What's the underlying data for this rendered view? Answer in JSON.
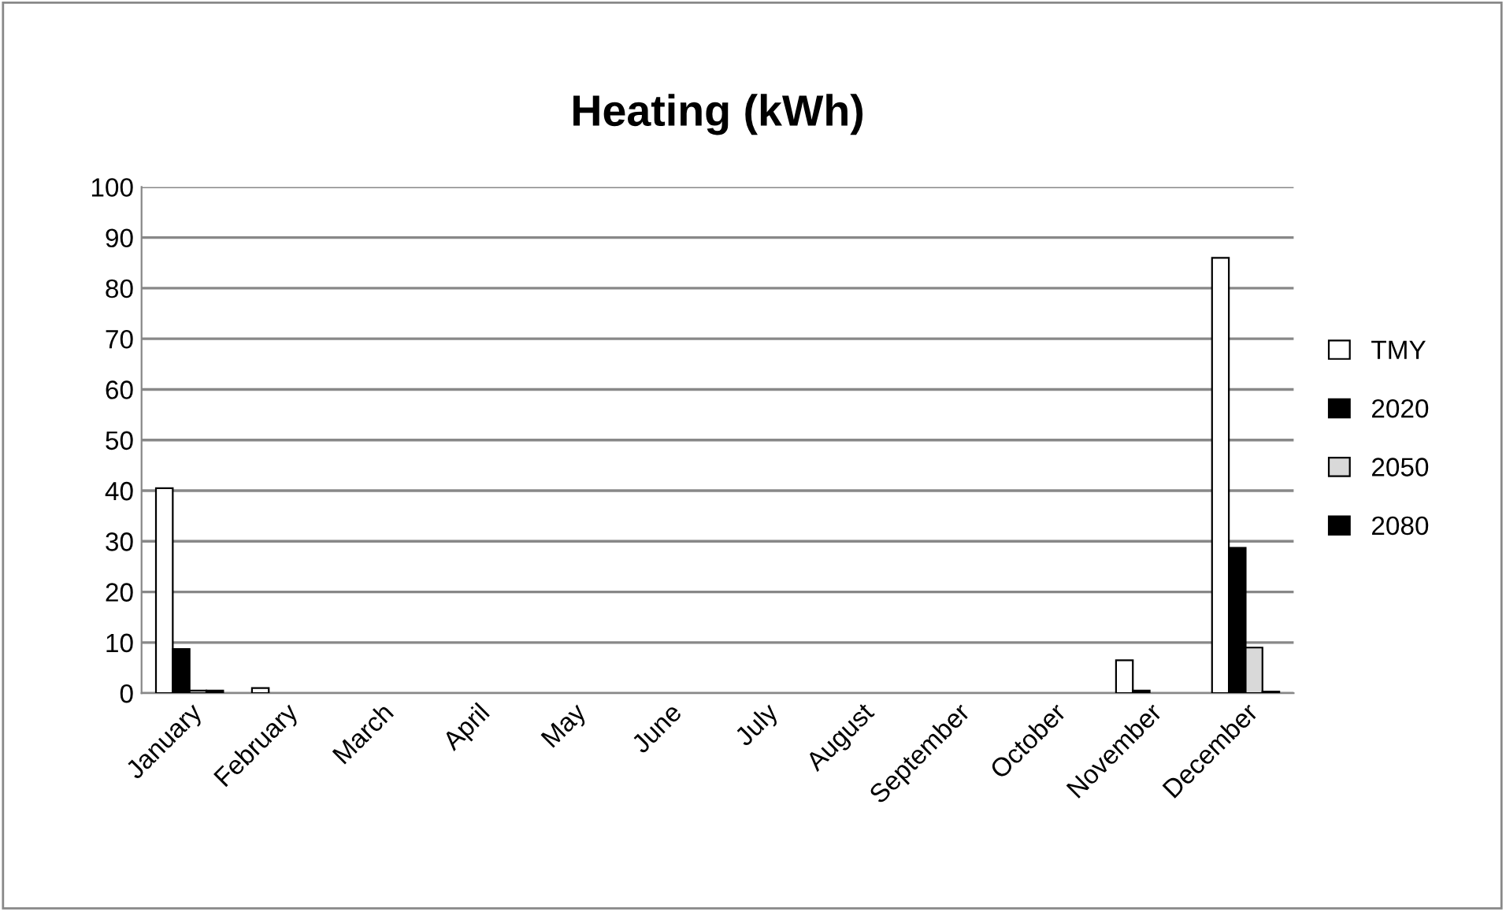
{
  "chart_data": {
    "type": "bar",
    "title": "Heating (kWh)",
    "categories": [
      "January",
      "February",
      "March",
      "April",
      "May",
      "June",
      "July",
      "August",
      "September",
      "October",
      "November",
      "December"
    ],
    "series": [
      {
        "name": "TMY",
        "color": "#ffffff",
        "values": [
          40.5,
          1,
          null,
          null,
          null,
          null,
          null,
          null,
          null,
          null,
          6.5,
          86
        ]
      },
      {
        "name": "2020",
        "color": "#000000",
        "values": [
          8.7,
          null,
          null,
          null,
          null,
          null,
          null,
          null,
          null,
          null,
          0.5,
          28.7
        ]
      },
      {
        "name": "2050",
        "color": "#d9d9d9",
        "values": [
          0.5,
          null,
          null,
          null,
          null,
          null,
          null,
          null,
          null,
          null,
          null,
          9
        ]
      },
      {
        "name": "2080",
        "color": "#000000",
        "values": [
          0.5,
          null,
          null,
          null,
          null,
          null,
          null,
          null,
          null,
          null,
          null,
          0.3
        ]
      }
    ],
    "ylim": [
      0,
      100
    ],
    "yticks": [
      0,
      10,
      20,
      30,
      40,
      50,
      60,
      70,
      80,
      90,
      100
    ],
    "grid": "y",
    "legend": "right"
  }
}
